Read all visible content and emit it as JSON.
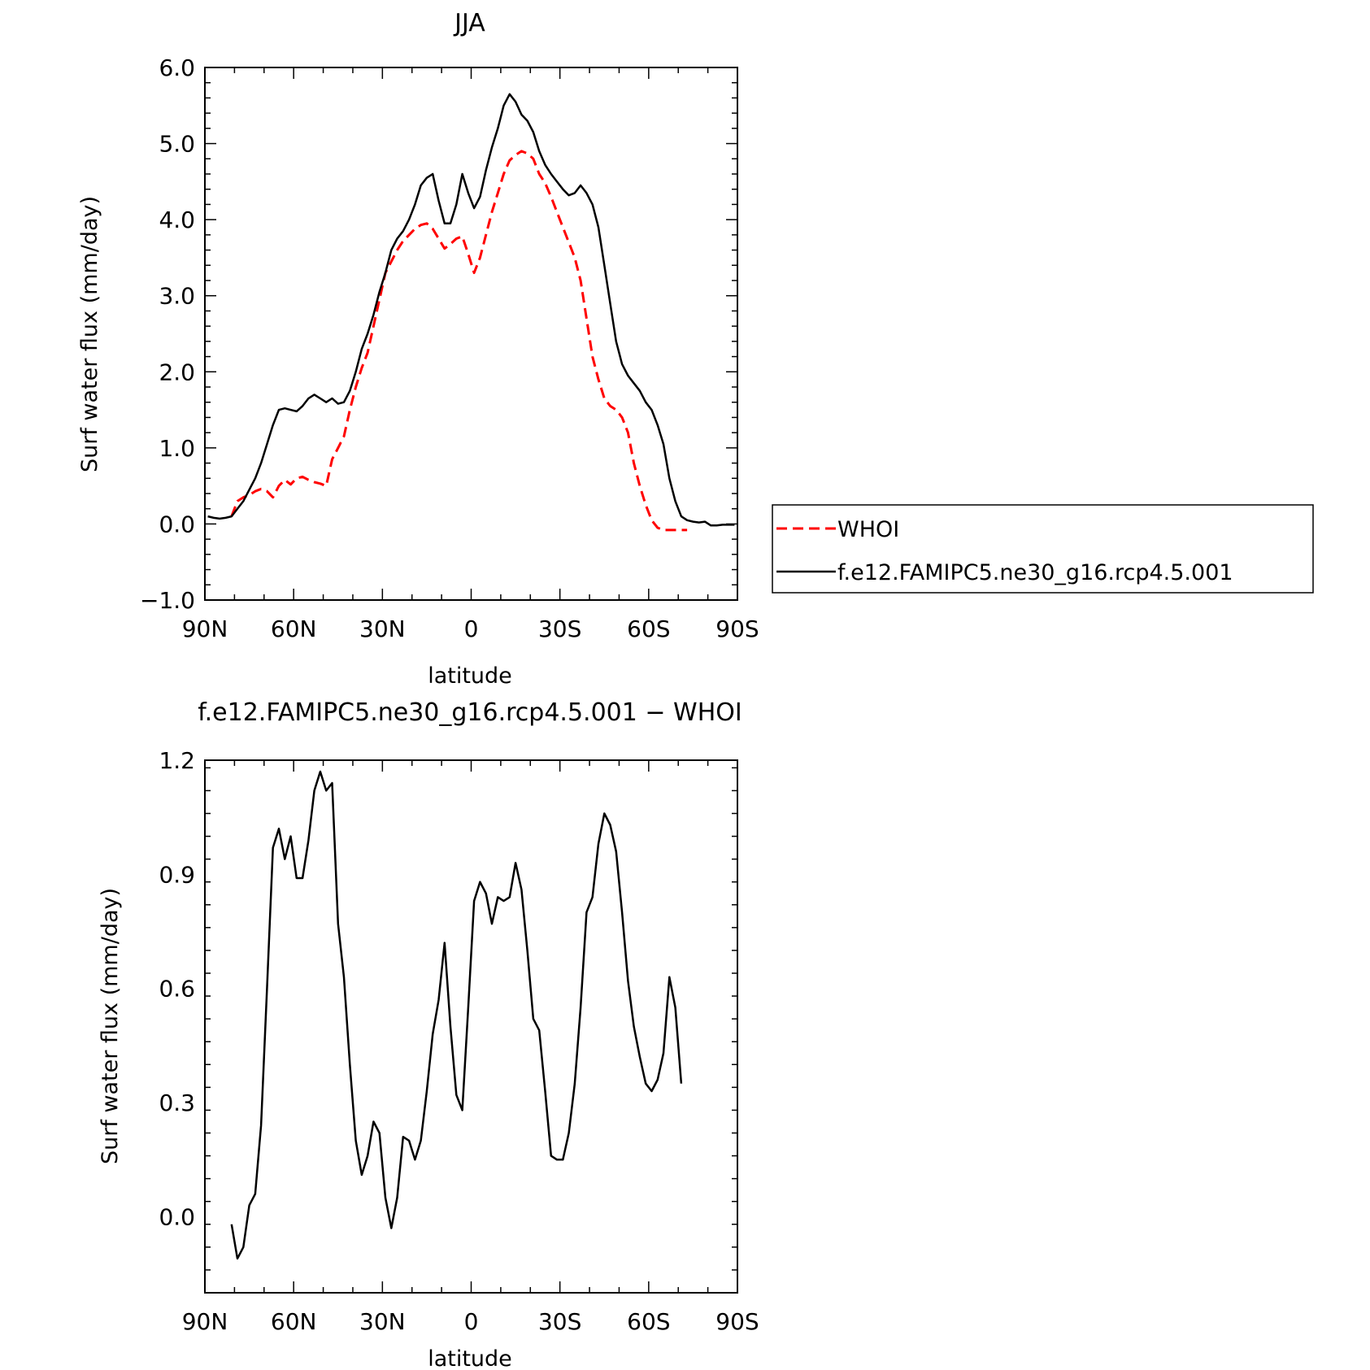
{
  "chart_data": [
    {
      "type": "line",
      "title": "JJA",
      "xlabel": "latitude",
      "ylabel": "Surf water flux (mm/day)",
      "xlim": [
        90,
        -90
      ],
      "ylim": [
        -1.0,
        6.0
      ],
      "yticks": [
        -1,
        0,
        1,
        2,
        3,
        4,
        5,
        6
      ],
      "yticklabels": [
        "−1.0",
        "0.0",
        "1.0",
        "2.0",
        "3.0",
        "4.0",
        "5.0",
        "6.0"
      ],
      "xticks": [
        90,
        60,
        30,
        0,
        -30,
        -60,
        -90
      ],
      "xticklabels": [
        "90N",
        "60N",
        "30N",
        "0",
        "30S",
        "60S",
        "90S"
      ],
      "legend_position": "right",
      "series": [
        {
          "name": "WHOI",
          "color": "#ff0000",
          "dash": "dashed",
          "x": [
            81,
            79,
            77,
            75,
            73,
            71,
            69,
            67,
            65,
            63,
            61,
            59,
            57,
            55,
            53,
            51,
            49,
            47,
            45,
            43,
            41,
            39,
            37,
            35,
            33,
            31,
            29,
            27,
            25,
            23,
            21,
            19,
            17,
            15,
            13,
            11,
            9,
            7,
            5,
            3,
            1,
            -1,
            -3,
            -5,
            -7,
            -9,
            -11,
            -13,
            -15,
            -17,
            -19,
            -21,
            -23,
            -25,
            -27,
            -29,
            -31,
            -33,
            -35,
            -37,
            -39,
            -41,
            -43,
            -45,
            -47,
            -49,
            -51,
            -53,
            -55,
            -57,
            -59,
            -61,
            -63,
            -65,
            -67,
            -69,
            -71,
            -73
          ],
          "y": [
            0.1,
            0.3,
            0.35,
            0.38,
            0.43,
            0.46,
            0.43,
            0.35,
            0.5,
            0.58,
            0.52,
            0.6,
            0.62,
            0.58,
            0.55,
            0.53,
            0.5,
            0.85,
            1.0,
            1.15,
            1.5,
            1.8,
            2.05,
            2.25,
            2.6,
            2.95,
            3.3,
            3.45,
            3.6,
            3.72,
            3.8,
            3.88,
            3.93,
            3.95,
            3.88,
            3.75,
            3.62,
            3.68,
            3.75,
            3.78,
            3.55,
            3.3,
            3.5,
            3.8,
            4.1,
            4.35,
            4.6,
            4.78,
            4.85,
            4.9,
            4.87,
            4.8,
            4.6,
            4.48,
            4.3,
            4.1,
            3.9,
            3.7,
            3.5,
            3.2,
            2.7,
            2.2,
            1.9,
            1.65,
            1.55,
            1.5,
            1.4,
            1.2,
            0.8,
            0.5,
            0.25,
            0.05,
            -0.05,
            -0.08,
            -0.08,
            -0.08,
            -0.08,
            -0.08
          ]
        },
        {
          "name": "f.e12.FAMIPC5.ne30_g16.rcp4.5.001",
          "color": "#000000",
          "dash": "solid",
          "x": [
            89,
            87,
            85,
            83,
            81,
            79,
            77,
            75,
            73,
            71,
            69,
            67,
            65,
            63,
            61,
            59,
            57,
            55,
            53,
            51,
            49,
            47,
            45,
            43,
            41,
            39,
            37,
            35,
            33,
            31,
            29,
            27,
            25,
            23,
            21,
            19,
            17,
            15,
            13,
            11,
            9,
            7,
            5,
            3,
            1,
            -1,
            -3,
            -5,
            -7,
            -9,
            -11,
            -13,
            -15,
            -17,
            -19,
            -21,
            -23,
            -25,
            -27,
            -29,
            -31,
            -33,
            -35,
            -37,
            -39,
            -41,
            -43,
            -45,
            -47,
            -49,
            -51,
            -53,
            -55,
            -57,
            -59,
            -61,
            -63,
            -65,
            -67,
            -69,
            -71,
            -73,
            -75,
            -77,
            -79,
            -81,
            -83,
            -85,
            -87,
            -89
          ],
          "y": [
            0.1,
            0.08,
            0.07,
            0.08,
            0.1,
            0.2,
            0.3,
            0.45,
            0.6,
            0.8,
            1.05,
            1.3,
            1.5,
            1.52,
            1.5,
            1.48,
            1.55,
            1.65,
            1.7,
            1.65,
            1.6,
            1.65,
            1.58,
            1.6,
            1.75,
            2.0,
            2.3,
            2.5,
            2.75,
            3.05,
            3.3,
            3.6,
            3.75,
            3.85,
            4.0,
            4.2,
            4.45,
            4.55,
            4.6,
            4.25,
            3.95,
            3.95,
            4.2,
            4.6,
            4.35,
            4.15,
            4.3,
            4.65,
            4.95,
            5.2,
            5.5,
            5.65,
            5.55,
            5.38,
            5.3,
            5.15,
            4.9,
            4.72,
            4.6,
            4.5,
            4.4,
            4.32,
            4.35,
            4.45,
            4.35,
            4.2,
            3.9,
            3.4,
            2.9,
            2.4,
            2.1,
            1.95,
            1.85,
            1.75,
            1.6,
            1.5,
            1.3,
            1.05,
            0.6,
            0.3,
            0.1,
            0.05,
            0.03,
            0.02,
            0.03,
            -0.02,
            -0.02,
            -0.01,
            -0.01,
            -0.01
          ]
        }
      ]
    },
    {
      "type": "line",
      "title": "f.e12.FAMIPC5.ne30_g16.rcp4.5.001 − WHOI",
      "xlabel": "latitude",
      "ylabel": "Surf water flux (mm/day)",
      "xlim": [
        90,
        -90
      ],
      "ylim": [
        -0.2,
        1.2
      ],
      "yticks": [
        0,
        0.3,
        0.6,
        0.9,
        1.2
      ],
      "yticklabels": [
        "0.0",
        "0.3",
        "0.6",
        "0.9",
        "1.2"
      ],
      "xticks": [
        90,
        60,
        30,
        0,
        -30,
        -60,
        -90
      ],
      "xticklabels": [
        "90N",
        "60N",
        "30N",
        "0",
        "30S",
        "60S",
        "90S"
      ],
      "series": [
        {
          "color": "#000000",
          "dash": "solid",
          "x": [
            81,
            79,
            77,
            75,
            73,
            71,
            69,
            67,
            65,
            63,
            61,
            59,
            57,
            55,
            53,
            51,
            49,
            47,
            45,
            43,
            41,
            39,
            37,
            35,
            33,
            31,
            29,
            27,
            25,
            23,
            21,
            19,
            17,
            15,
            13,
            11,
            9,
            7,
            5,
            3,
            1,
            -1,
            -3,
            -5,
            -7,
            -9,
            -11,
            -13,
            -15,
            -17,
            -19,
            -21,
            -23,
            -25,
            -27,
            -29,
            -31,
            -33,
            -35,
            -37,
            -39,
            -41,
            -43,
            -45,
            -47,
            -49,
            -51,
            -53,
            -55,
            -57,
            -59,
            -61,
            -63,
            -65,
            -67,
            -69,
            -71
          ],
          "y": [
            -0.02,
            -0.11,
            -0.08,
            0.03,
            0.06,
            0.24,
            0.6,
            0.97,
            1.02,
            0.94,
            1.0,
            0.89,
            0.89,
            0.99,
            1.12,
            1.17,
            1.12,
            1.14,
            0.77,
            0.63,
            0.4,
            0.2,
            0.11,
            0.16,
            0.25,
            0.22,
            0.05,
            -0.03,
            0.05,
            0.21,
            0.2,
            0.15,
            0.2,
            0.33,
            0.48,
            0.57,
            0.72,
            0.5,
            0.32,
            0.28,
            0.55,
            0.83,
            0.88,
            0.85,
            0.77,
            0.84,
            0.83,
            0.84,
            0.93,
            0.86,
            0.7,
            0.52,
            0.49,
            0.33,
            0.16,
            0.15,
            0.15,
            0.22,
            0.35,
            0.55,
            0.8,
            0.84,
            0.98,
            1.06,
            1.03,
            0.96,
            0.8,
            0.62,
            0.5,
            0.42,
            0.35,
            0.33,
            0.36,
            0.43,
            0.63,
            0.55,
            0.35
          ]
        }
      ]
    }
  ]
}
